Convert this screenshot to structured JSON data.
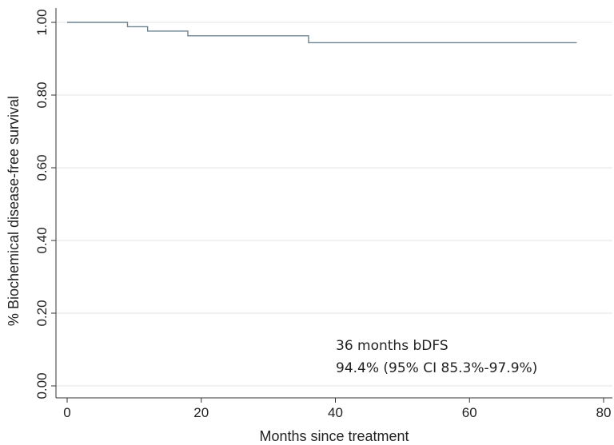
{
  "chart_data": {
    "type": "line",
    "step": true,
    "title": "",
    "xlabel": "Months since treatment",
    "ylabel": "% Biochemical disease-free survival",
    "xlim": [
      0,
      80
    ],
    "ylim": [
      0,
      1
    ],
    "x_ticks": [
      "0",
      "20",
      "40",
      "60",
      "80"
    ],
    "y_ticks": [
      "0.00",
      "0.20",
      "0.40",
      "0.60",
      "0.80",
      "1.00"
    ],
    "grid": "horizontal",
    "legend": "none",
    "series": [
      {
        "x": [
          0,
          9,
          12,
          18,
          36,
          76
        ],
        "y": [
          1.0,
          0.988,
          0.976,
          0.963,
          0.944,
          0.944
        ],
        "color": "#6e8490"
      }
    ],
    "annotations": [
      "36 months bDFS",
      "94.4% (95% CI 85.3%-97.9%)"
    ]
  }
}
